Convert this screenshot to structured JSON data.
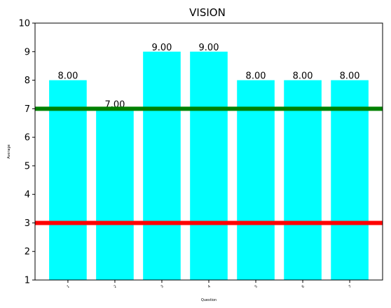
{
  "chart_data": {
    "type": "bar",
    "title": "VISION",
    "xlabel": "Question",
    "ylabel": "Average",
    "categories": [
      "1",
      "2",
      "3",
      "4",
      "5",
      "6",
      "7"
    ],
    "values": [
      8.0,
      7.0,
      9.0,
      9.0,
      8.0,
      8.0,
      8.0
    ],
    "data_labels": [
      "8.00",
      "7.00",
      "9.00",
      "9.00",
      "8.00",
      "8.00",
      "8.00"
    ],
    "ylim": [
      1,
      10
    ],
    "yticks": [
      "1",
      "2",
      "3",
      "4",
      "5",
      "6",
      "7",
      "8",
      "9",
      "10"
    ],
    "bar_color": "#00ffff",
    "reference_lines": [
      {
        "value": 7,
        "color": "#008000"
      },
      {
        "value": 3,
        "color": "#ff0000"
      }
    ],
    "grid": false,
    "legend": "none"
  }
}
